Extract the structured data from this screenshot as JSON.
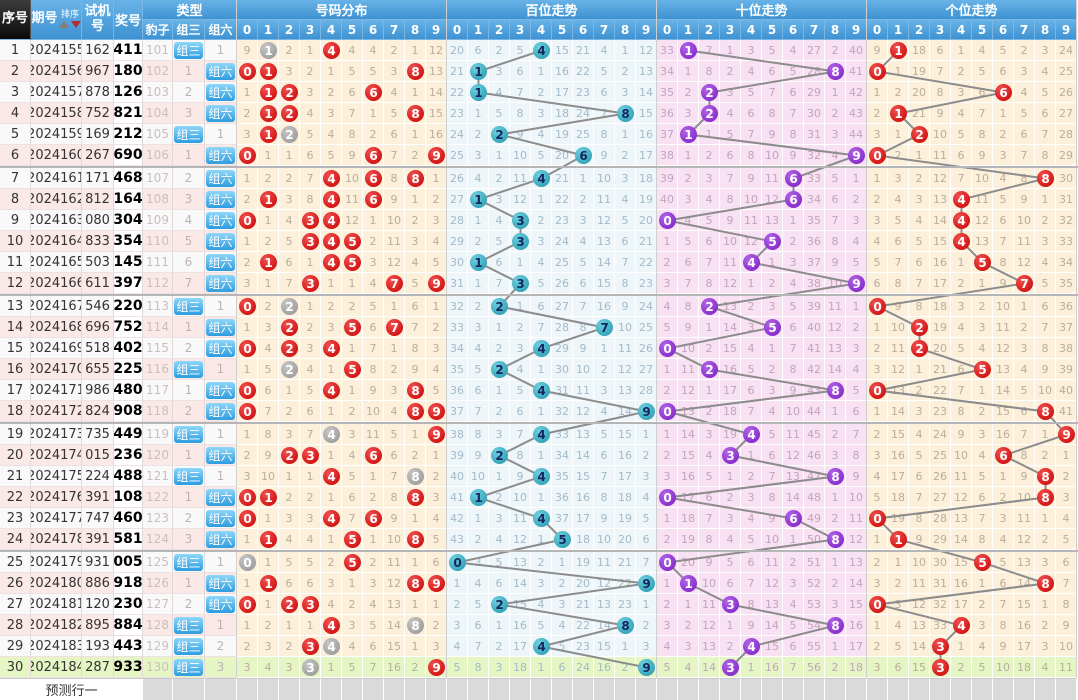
{
  "chart_data": {
    "type": "table",
    "labels": {
      "seq": "序号",
      "period": "期号",
      "sort": "排序",
      "test": "试机号",
      "prize": "奖号",
      "type": "类型",
      "baozi": "豹子",
      "zu3": "组三",
      "zu6": "组六"
    },
    "section_titles": {
      "fenbu": "号码分布",
      "bai": "百位走势",
      "shi": "十位走势",
      "ge": "个位走势"
    },
    "digit_headers": [
      "0",
      "1",
      "2",
      "3",
      "4",
      "5",
      "6",
      "7",
      "8",
      "9"
    ],
    "footer_label": "预测行一",
    "rows": [
      {
        "seq": "1",
        "period": "2024155",
        "test": "162",
        "prize": "411",
        "leopard": "101",
        "zu3": "组三",
        "zu6": "1"
      },
      {
        "seq": "2",
        "period": "2024156",
        "test": "967",
        "prize": "180",
        "leopard": "102",
        "zu3": "1",
        "zu6": "组六"
      },
      {
        "seq": "3",
        "period": "2024157",
        "test": "878",
        "prize": "126",
        "leopard": "103",
        "zu3": "2",
        "zu6": "组六"
      },
      {
        "seq": "4",
        "period": "2024158",
        "test": "752",
        "prize": "821",
        "leopard": "104",
        "zu3": "3",
        "zu6": "组六"
      },
      {
        "seq": "5",
        "period": "2024159",
        "test": "169",
        "prize": "212",
        "leopard": "105",
        "zu3": "组三",
        "zu6": "1"
      },
      {
        "seq": "6",
        "period": "2024160",
        "test": "267",
        "prize": "690",
        "leopard": "106",
        "zu3": "1",
        "zu6": "组六"
      },
      {
        "seq": "7",
        "period": "2024161",
        "test": "171",
        "prize": "468",
        "leopard": "107",
        "zu3": "2",
        "zu6": "组六"
      },
      {
        "seq": "8",
        "period": "2024162",
        "test": "812",
        "prize": "164",
        "leopard": "108",
        "zu3": "3",
        "zu6": "组六"
      },
      {
        "seq": "9",
        "period": "2024163",
        "test": "080",
        "prize": "304",
        "leopard": "109",
        "zu3": "4",
        "zu6": "组六"
      },
      {
        "seq": "10",
        "period": "2024164",
        "test": "833",
        "prize": "354",
        "leopard": "110",
        "zu3": "5",
        "zu6": "组六"
      },
      {
        "seq": "11",
        "period": "2024165",
        "test": "503",
        "prize": "145",
        "leopard": "111",
        "zu3": "6",
        "zu6": "组六"
      },
      {
        "seq": "12",
        "period": "2024166",
        "test": "611",
        "prize": "397",
        "leopard": "112",
        "zu3": "7",
        "zu6": "组六"
      },
      {
        "seq": "13",
        "period": "2024167",
        "test": "546",
        "prize": "220",
        "leopard": "113",
        "zu3": "组三",
        "zu6": "1"
      },
      {
        "seq": "14",
        "period": "2024168",
        "test": "696",
        "prize": "752",
        "leopard": "114",
        "zu3": "1",
        "zu6": "组六"
      },
      {
        "seq": "15",
        "period": "2024169",
        "test": "518",
        "prize": "402",
        "leopard": "115",
        "zu3": "2",
        "zu6": "组六"
      },
      {
        "seq": "16",
        "period": "2024170",
        "test": "655",
        "prize": "225",
        "leopard": "116",
        "zu3": "组三",
        "zu6": "1"
      },
      {
        "seq": "17",
        "period": "2024171",
        "test": "986",
        "prize": "480",
        "leopard": "117",
        "zu3": "1",
        "zu6": "组六"
      },
      {
        "seq": "18",
        "period": "2024172",
        "test": "824",
        "prize": "908",
        "leopard": "118",
        "zu3": "2",
        "zu6": "组六"
      },
      {
        "seq": "19",
        "period": "2024173",
        "test": "735",
        "prize": "449",
        "leopard": "119",
        "zu3": "组三",
        "zu6": "1"
      },
      {
        "seq": "20",
        "period": "2024174",
        "test": "015",
        "prize": "236",
        "leopard": "120",
        "zu3": "1",
        "zu6": "组六"
      },
      {
        "seq": "21",
        "period": "2024175",
        "test": "224",
        "prize": "488",
        "leopard": "121",
        "zu3": "组三",
        "zu6": "1"
      },
      {
        "seq": "22",
        "period": "2024176",
        "test": "391",
        "prize": "108",
        "leopard": "122",
        "zu3": "1",
        "zu6": "组六"
      },
      {
        "seq": "23",
        "period": "2024177",
        "test": "747",
        "prize": "460",
        "leopard": "123",
        "zu3": "2",
        "zu6": "组六"
      },
      {
        "seq": "24",
        "period": "2024178",
        "test": "391",
        "prize": "581",
        "leopard": "124",
        "zu3": "3",
        "zu6": "组六"
      },
      {
        "seq": "25",
        "period": "2024179",
        "test": "931",
        "prize": "005",
        "leopard": "125",
        "zu3": "组三",
        "zu6": "1"
      },
      {
        "seq": "26",
        "period": "2024180",
        "test": "886",
        "prize": "918",
        "leopard": "126",
        "zu3": "1",
        "zu6": "组六"
      },
      {
        "seq": "27",
        "period": "2024181",
        "test": "120",
        "prize": "230",
        "leopard": "127",
        "zu3": "2",
        "zu6": "组六"
      },
      {
        "seq": "28",
        "period": "2024182",
        "test": "895",
        "prize": "884",
        "leopard": "128",
        "zu3": "组三",
        "zu6": "1"
      },
      {
        "seq": "29",
        "period": "2024183",
        "test": "193",
        "prize": "443",
        "leopard": "129",
        "zu3": "组三",
        "zu6": "2"
      },
      {
        "seq": "30",
        "period": "2024184",
        "test": "287",
        "prize": "933",
        "leopard": "130",
        "zu3": "组三",
        "zu6": "3"
      }
    ],
    "seeds": {
      "fenbu": [
        8,
        0,
        1,
        0,
        0,
        3,
        3,
        1,
        0,
        11
      ],
      "bai": [
        19,
        5,
        1,
        4,
        0,
        14,
        20,
        3,
        0,
        11
      ],
      "shi": [
        32,
        0,
        6,
        0,
        2,
        4,
        3,
        26,
        1,
        39
      ],
      "ge": [
        8,
        0,
        17,
        5,
        0,
        3,
        4,
        1,
        2,
        23
      ]
    },
    "colors": {
      "header_blue": "#3e92d2",
      "seq_header_black": "#0a0a0a",
      "ball_red": "#d40000",
      "ball_gray": "#a2a2a2",
      "ball_teal": "#2ca9c2",
      "ball_purple": "#8b2fd0",
      "teal_ball_text": "#14275f",
      "row_pink": "#fbe9e7",
      "row_green": "#e5f6c4",
      "section_beige": "#fcf0db",
      "section_blue": "#eef6fa",
      "section_pink": "#f8e1f3",
      "badge_blue": "#2e9ce0",
      "connector_line": "#8c8c8c",
      "sort_up_arrow": "#8b7a6d",
      "sort_down_arrow": "#b03030"
    }
  }
}
